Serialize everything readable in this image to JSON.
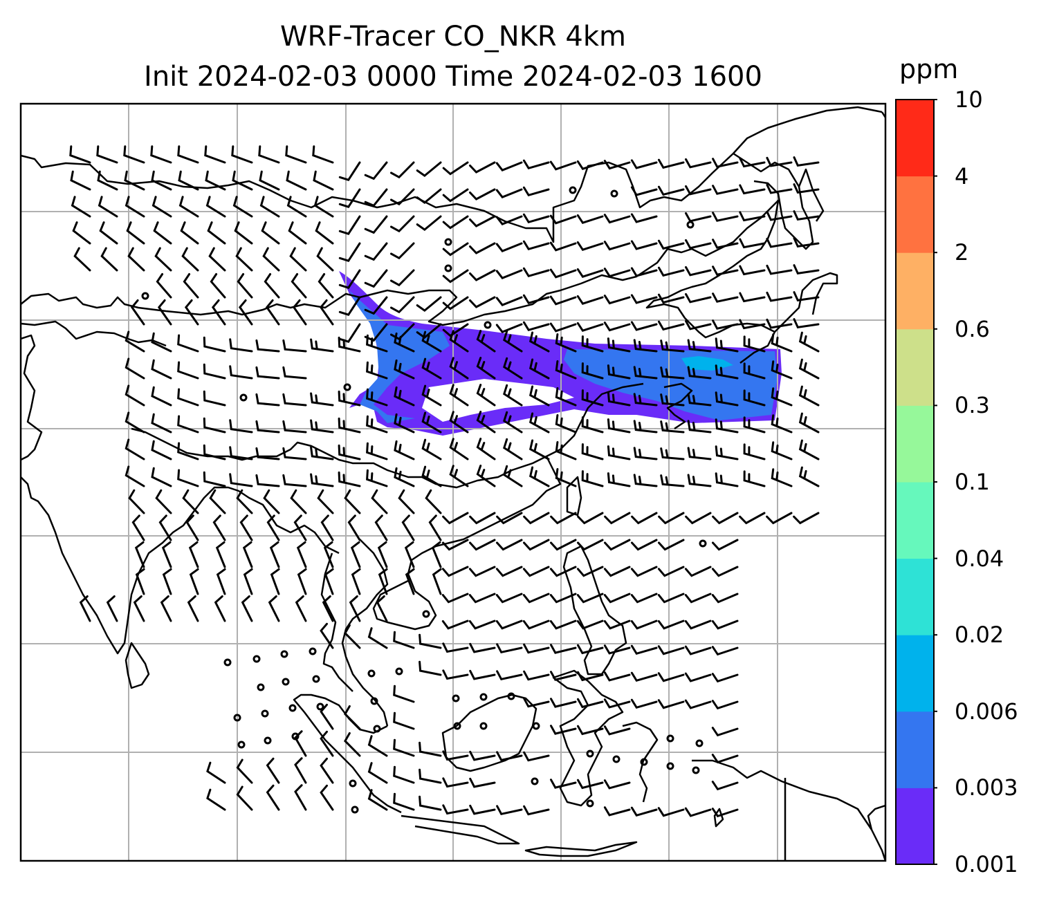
{
  "title": {
    "line1": "WRF-Tracer CO_NKR 4km",
    "line2": "Init 2024-02-03 0000 Time 2024-02-03 1600"
  },
  "colorbar": {
    "unit": "ppm",
    "levels": [
      "0.001",
      "0.003",
      "0.006",
      "0.02",
      "0.04",
      "0.1",
      "0.3",
      "0.6",
      "2",
      "4",
      "10"
    ],
    "colors": [
      "#6a2cf8",
      "#3476f0",
      "#00b2ec",
      "#2ee2d6",
      "#66f8bc",
      "#96f89a",
      "#cde08a",
      "#feb064",
      "#ff7240",
      "#ff2a18"
    ]
  },
  "map": {
    "frame_color": "#000000",
    "grid_color": "#b0b0b0",
    "coastline_color": "#000000",
    "barb_color": "#000000",
    "plume_color": "#6a2cf8",
    "plume_core_color": "#3476f0",
    "plume_peak_color": "#00b2ec"
  }
}
